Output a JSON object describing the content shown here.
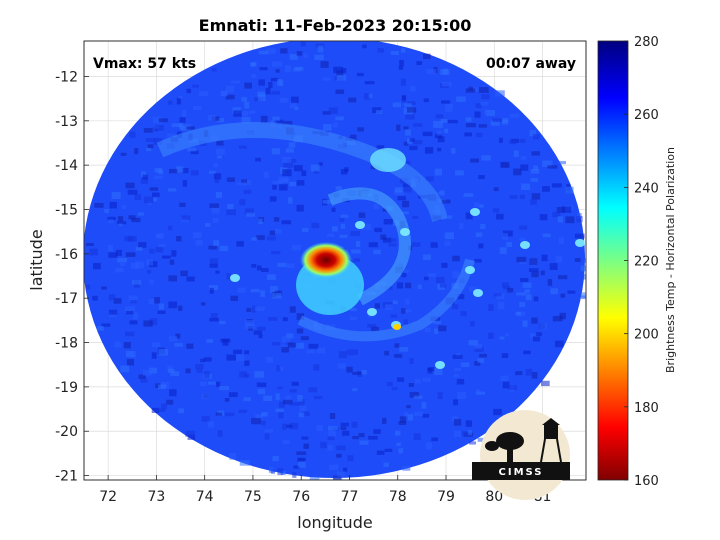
{
  "chart_data": {
    "type": "heatmap",
    "title": "Emnati: 11-Feb-2023 20:15:00",
    "xlabel": "longitude",
    "ylabel": "latitude",
    "xlim": [
      71.5,
      81.9
    ],
    "ylim": [
      -21.1,
      -11.2
    ],
    "x_ticks": [
      "72",
      "73",
      "74",
      "75",
      "76",
      "77",
      "78",
      "79",
      "80",
      "81"
    ],
    "y_ticks": [
      "-12",
      "-13",
      "-14",
      "-15",
      "-16",
      "-17",
      "-18",
      "-19",
      "-20",
      "-21"
    ],
    "grid": true,
    "annotations": {
      "vmax": "Vmax: 57 kts",
      "away": "00:07 away"
    },
    "colorbar": {
      "label": "Brightness Temp - Horizontal Polarization",
      "range": [
        160,
        280
      ],
      "ticks": [
        "280",
        "260",
        "240",
        "220",
        "200",
        "180",
        "160"
      ],
      "colormap": "jet"
    },
    "storm_center": {
      "lon": 76.4,
      "lat": -16.1
    },
    "min_value_approx": 165,
    "background_value_approx": 268
  },
  "logo": {
    "text": "CIMSS"
  },
  "colors": {
    "deep_blue": "#0018c0",
    "mid_blue": "#1f4fff",
    "cyan": "#40d8ff",
    "red": "#d00000",
    "dark_red": "#700000"
  }
}
